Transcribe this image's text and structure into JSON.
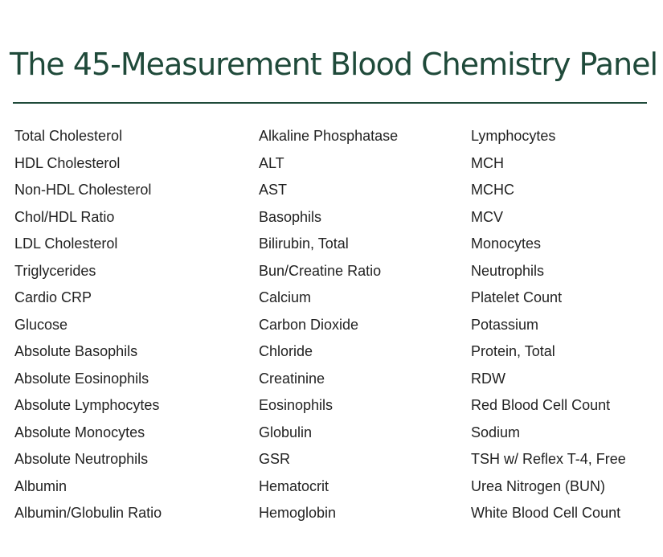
{
  "title": "The 45-Measurement Blood Chemistry Panel",
  "columns": [
    [
      "Total Cholesterol",
      "HDL Cholesterol",
      "Non-HDL Cholesterol",
      "Chol/HDL Ratio",
      "LDL Cholesterol",
      "Triglycerides",
      "Cardio CRP",
      "Glucose",
      "Absolute Basophils",
      "Absolute Eosinophils",
      "Absolute Lymphocytes",
      "Absolute Monocytes",
      "Absolute Neutrophils",
      "Albumin",
      "Albumin/Globulin Ratio"
    ],
    [
      "Alkaline Phosphatase",
      "ALT",
      "AST",
      "Basophils",
      "Bilirubin, Total",
      "Bun/Creatine Ratio",
      "Calcium",
      "Carbon Dioxide",
      "Chloride",
      "Creatinine",
      "Eosinophils",
      "Globulin",
      "GSR",
      "Hematocrit",
      "Hemoglobin"
    ],
    [
      "Lymphocytes",
      "MCH",
      "MCHC",
      "MCV",
      "Monocytes",
      "Neutrophils",
      "Platelet Count",
      "Potassium",
      "Protein, Total",
      "RDW",
      "Red Blood Cell Count",
      "Sodium",
      "TSH w/ Reflex T-4, Free",
      "Urea Nitrogen (BUN)",
      "White Blood Cell Count"
    ]
  ]
}
